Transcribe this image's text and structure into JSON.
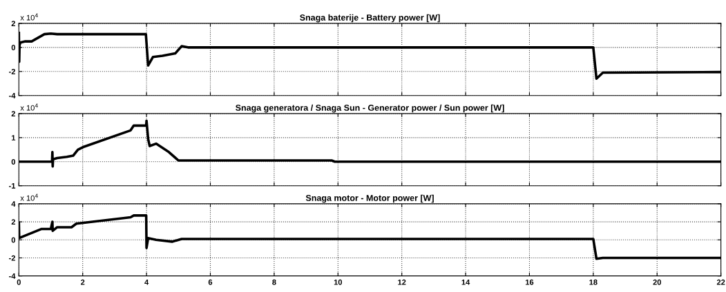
{
  "chart_data": [
    {
      "type": "line",
      "title": "Snaga baterije - Battery power [W]",
      "annotations": [
        "x 10$^{4}$"
      ],
      "xlim": [
        0,
        22
      ],
      "xticks": [
        0,
        2,
        4,
        6,
        8,
        10,
        12,
        14,
        16,
        18,
        20,
        22
      ],
      "ylim": [
        -4,
        2
      ],
      "yticks": [
        -4,
        -2,
        0,
        2
      ],
      "grid": true,
      "line_style": "solid",
      "tick_labels": "y",
      "series": [
        {
          "color": "#000000",
          "x": [
            0,
            0.01,
            0.02,
            0.05,
            0.2,
            0.4,
            0.6,
            0.8,
            1.0,
            1.2,
            3.5,
            3.98,
            4.05,
            4.2,
            4.5,
            4.9,
            5.1,
            5.3,
            18.0,
            18.1,
            18.3,
            22
          ],
          "values": [
            1.2,
            -1.2,
            0.2,
            0.4,
            0.5,
            0.5,
            0.8,
            1.1,
            1.15,
            1.1,
            1.1,
            1.1,
            -1.5,
            -0.8,
            -0.7,
            -0.5,
            0.1,
            0.0,
            0.0,
            -2.6,
            -2.1,
            -2.05
          ]
        }
      ]
    },
    {
      "type": "line",
      "title": "Snaga generatora / Snaga Sun - Generator power / Sun power [W]",
      "annotations": [
        "x 10$^{4}$"
      ],
      "xlim": [
        0,
        22
      ],
      "xticks": [
        0,
        2,
        4,
        6,
        8,
        10,
        12,
        14,
        16,
        18,
        20,
        22
      ],
      "ylim": [
        -1,
        2
      ],
      "yticks": [
        -1,
        0,
        1,
        2
      ],
      "grid": true,
      "line_style": "solid",
      "tick_labels": "y",
      "series": [
        {
          "color": "#000000",
          "x": [
            0,
            1.04,
            1.05,
            1.06,
            1.07,
            1.2,
            1.5,
            1.7,
            1.85,
            2.0,
            3.5,
            3.6,
            3.99,
            4.0,
            4.05,
            4.1,
            4.3,
            4.7,
            5.0,
            9.8,
            9.9,
            22
          ],
          "values": [
            0,
            0,
            0.4,
            -0.2,
            0.1,
            0.15,
            0.2,
            0.25,
            0.5,
            0.6,
            1.3,
            1.5,
            1.5,
            1.7,
            0.95,
            0.65,
            0.75,
            0.4,
            0.05,
            0.05,
            0.0,
            0.0
          ]
        }
      ]
    },
    {
      "type": "line",
      "title": "Snaga motor - Motor power [W]",
      "annotations": [
        "x 10$^{4}$"
      ],
      "xlim": [
        0,
        22
      ],
      "xticks": [
        0,
        2,
        4,
        6,
        8,
        10,
        12,
        14,
        16,
        18,
        20,
        22
      ],
      "ylim": [
        -4,
        4
      ],
      "yticks": [
        -4,
        -2,
        0,
        2,
        4
      ],
      "grid": true,
      "line_style": "solid",
      "series": [
        {
          "color": "#000000",
          "x": [
            0,
            0.01,
            0.7,
            1.0,
            1.05,
            1.06,
            1.2,
            1.65,
            1.8,
            3.5,
            3.6,
            3.99,
            4.0,
            4.05,
            4.3,
            4.8,
            5.1,
            18.0,
            18.1,
            18.3,
            22
          ],
          "values": [
            1.9,
            0.2,
            1.2,
            1.2,
            2.0,
            1.0,
            1.4,
            1.4,
            1.8,
            2.5,
            2.7,
            2.7,
            -0.9,
            0.2,
            0.0,
            -0.2,
            0.1,
            0.1,
            -2.1,
            -2.0,
            -2.0
          ]
        }
      ]
    }
  ]
}
